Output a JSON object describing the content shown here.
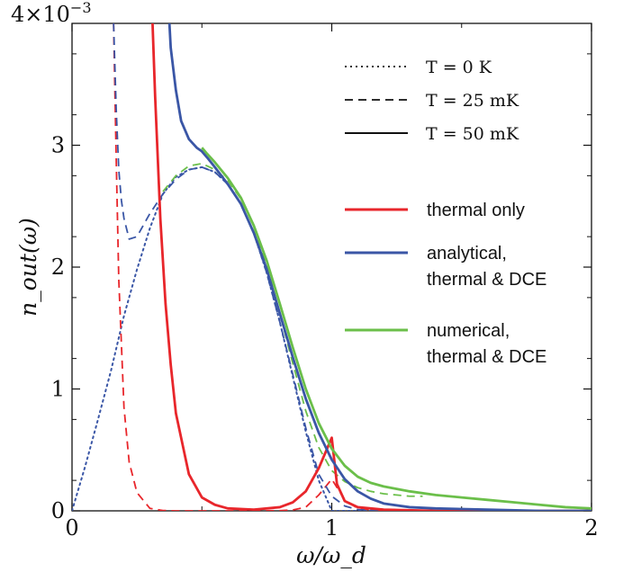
{
  "chart_data": {
    "type": "line",
    "xlabel": "ω/ω_d",
    "ylabel": "n_out(ω)",
    "xlim": [
      0,
      2
    ],
    "ylim": [
      0,
      0.004
    ],
    "x_ticks": [
      {
        "value": 0,
        "label": "0"
      },
      {
        "value": 1,
        "label": "1"
      },
      {
        "value": 2,
        "label": "2"
      }
    ],
    "y_ticks": [
      {
        "value": 0,
        "label": "0"
      },
      {
        "value": 0.001,
        "label": "1"
      },
      {
        "value": 0.002,
        "label": "2"
      },
      {
        "value": 0.003,
        "label": "3"
      }
    ],
    "y_scale_label": "4×10",
    "y_scale_exponent": "−3",
    "grid": false,
    "legend_position": "top-right",
    "style_legend": [
      {
        "temperature_label": "T = 0 K",
        "dash": "dotted"
      },
      {
        "temperature_label": "T = 25 mK",
        "dash": "dashed"
      },
      {
        "temperature_label": "T = 50 mK",
        "dash": "solid"
      }
    ],
    "color_legend": [
      {
        "lines": [
          "thermal only"
        ],
        "color": "#e8262b"
      },
      {
        "lines": [
          "analytical,",
          "thermal & DCE"
        ],
        "color": "#3a56a6"
      },
      {
        "lines": [
          "numerical,",
          "thermal & DCE"
        ],
        "color": "#6bbf4a"
      }
    ],
    "series": [
      {
        "model": "thermal only",
        "temperature": "T = 25 mK",
        "color": "#e8262b",
        "dash": "dashed",
        "x": [
          0.16,
          0.17,
          0.18,
          0.2,
          0.22,
          0.25,
          0.3,
          0.35,
          0.4,
          0.5,
          0.6,
          0.7,
          0.8,
          0.85,
          0.9,
          0.95,
          1.0,
          1.05,
          1.1,
          1.2,
          1.4,
          1.6,
          2.0
        ],
        "y": [
          0.004,
          0.0029,
          0.0019,
          0.00085,
          0.0004,
          0.00015,
          2e-05,
          3e-06,
          0,
          0,
          0,
          0,
          2e-06,
          7e-06,
          3e-05,
          0.00013,
          0.00026,
          9e-05,
          2e-05,
          0,
          0,
          0,
          0
        ]
      },
      {
        "model": "thermal only",
        "temperature": "T = 50 mK",
        "color": "#e8262b",
        "dash": "solid",
        "x": [
          0.31,
          0.32,
          0.34,
          0.36,
          0.38,
          0.4,
          0.45,
          0.5,
          0.55,
          0.6,
          0.7,
          0.8,
          0.85,
          0.9,
          0.95,
          1.0,
          1.02,
          1.05,
          1.1,
          1.2,
          1.4,
          1.6,
          1.8,
          2.0
        ],
        "y": [
          0.004,
          0.0034,
          0.0024,
          0.0017,
          0.0012,
          0.0008,
          0.0003,
          0.00011,
          5e-05,
          2e-05,
          1e-05,
          3e-05,
          7e-05,
          0.00016,
          0.00035,
          0.0006,
          0.00022,
          8e-05,
          3e-05,
          1e-05,
          0,
          0,
          0,
          0
        ]
      },
      {
        "model": "analytical, thermal & DCE",
        "temperature": "T = 0 K",
        "color": "#3a56a6",
        "dash": "dotted",
        "x": [
          0,
          0.05,
          0.1,
          0.15,
          0.2,
          0.25,
          0.3,
          0.35,
          0.4,
          0.45,
          0.5,
          0.55,
          0.6,
          0.65,
          0.7,
          0.75,
          0.8,
          0.85,
          0.9,
          0.95,
          1.0,
          1.05,
          1.1,
          1.3,
          1.6,
          2.0
        ],
        "y": [
          0,
          0.00036,
          0.00075,
          0.00115,
          0.0016,
          0.00198,
          0.00232,
          0.0026,
          0.00274,
          0.0028,
          0.00282,
          0.00278,
          0.00268,
          0.00252,
          0.00228,
          0.00195,
          0.00155,
          0.0011,
          0.00065,
          0.00025,
          0,
          0,
          0,
          0,
          0,
          0
        ]
      },
      {
        "model": "analytical, thermal & DCE",
        "temperature": "T = 25 mK",
        "color": "#3a56a6",
        "dash": "dashed",
        "x": [
          0.16,
          0.17,
          0.18,
          0.19,
          0.2,
          0.22,
          0.25,
          0.3,
          0.35,
          0.4,
          0.45,
          0.5,
          0.55,
          0.6,
          0.65,
          0.7,
          0.75,
          0.8,
          0.85,
          0.9,
          0.95,
          1.0,
          1.05,
          1.1,
          1.2,
          1.4,
          1.6,
          2.0
        ],
        "y": [
          0.004,
          0.0033,
          0.0028,
          0.00255,
          0.0024,
          0.00223,
          0.00225,
          0.00244,
          0.0026,
          0.00272,
          0.0028,
          0.00282,
          0.00278,
          0.00268,
          0.00252,
          0.00228,
          0.00195,
          0.00155,
          0.00112,
          0.00068,
          0.0003,
          0.00012,
          4e-05,
          1e-05,
          0,
          0,
          0,
          0
        ]
      },
      {
        "model": "analytical, thermal & DCE",
        "temperature": "T = 50 mK",
        "color": "#3a56a6",
        "dash": "solid",
        "x": [
          0.375,
          0.38,
          0.4,
          0.42,
          0.45,
          0.48,
          0.5,
          0.52,
          0.55,
          0.6,
          0.65,
          0.7,
          0.75,
          0.8,
          0.85,
          0.9,
          0.95,
          1.0,
          1.05,
          1.1,
          1.15,
          1.2,
          1.3,
          1.4,
          1.6,
          1.8,
          2.0
        ],
        "y": [
          0.004,
          0.0038,
          0.00345,
          0.0032,
          0.00305,
          0.00298,
          0.00295,
          0.0029,
          0.00282,
          0.00268,
          0.00252,
          0.00228,
          0.00198,
          0.00162,
          0.00126,
          0.00092,
          0.00064,
          0.00042,
          0.00026,
          0.00016,
          0.0001,
          6e-05,
          3e-05,
          2e-05,
          1e-05,
          0,
          0
        ]
      },
      {
        "model": "numerical, thermal & DCE",
        "temperature": "T = 25 mK",
        "color": "#6bbf4a",
        "dash": "dashed",
        "x": [
          0.35,
          0.4,
          0.45,
          0.5,
          0.55,
          0.6,
          0.65,
          0.7,
          0.75,
          0.8,
          0.85,
          0.9,
          0.95,
          1.0,
          1.05,
          1.1,
          1.15,
          1.2,
          1.25,
          1.3,
          1.35
        ],
        "y": [
          0.00262,
          0.00275,
          0.00283,
          0.00285,
          0.0028,
          0.00271,
          0.00256,
          0.00233,
          0.00201,
          0.00162,
          0.00121,
          0.00082,
          0.00052,
          0.00033,
          0.00024,
          0.00019,
          0.00016,
          0.00014,
          0.00013,
          0.00012,
          0.00012
        ]
      },
      {
        "model": "numerical, thermal & DCE",
        "temperature": "T = 50 mK",
        "color": "#6bbf4a",
        "dash": "solid",
        "x": [
          0.5,
          0.52,
          0.55,
          0.6,
          0.65,
          0.7,
          0.75,
          0.8,
          0.85,
          0.9,
          0.95,
          1.0,
          1.05,
          1.1,
          1.15,
          1.2,
          1.3,
          1.4,
          1.5,
          1.6,
          1.7,
          1.8,
          1.9,
          2.0
        ],
        "y": [
          0.00298,
          0.00293,
          0.00286,
          0.00273,
          0.00257,
          0.00234,
          0.00205,
          0.0017,
          0.00134,
          0.001,
          0.00072,
          0.00051,
          0.00037,
          0.00028,
          0.00023,
          0.0002,
          0.00016,
          0.00013,
          0.00011,
          9e-05,
          7e-05,
          5e-05,
          3e-05,
          2e-05
        ]
      }
    ]
  }
}
